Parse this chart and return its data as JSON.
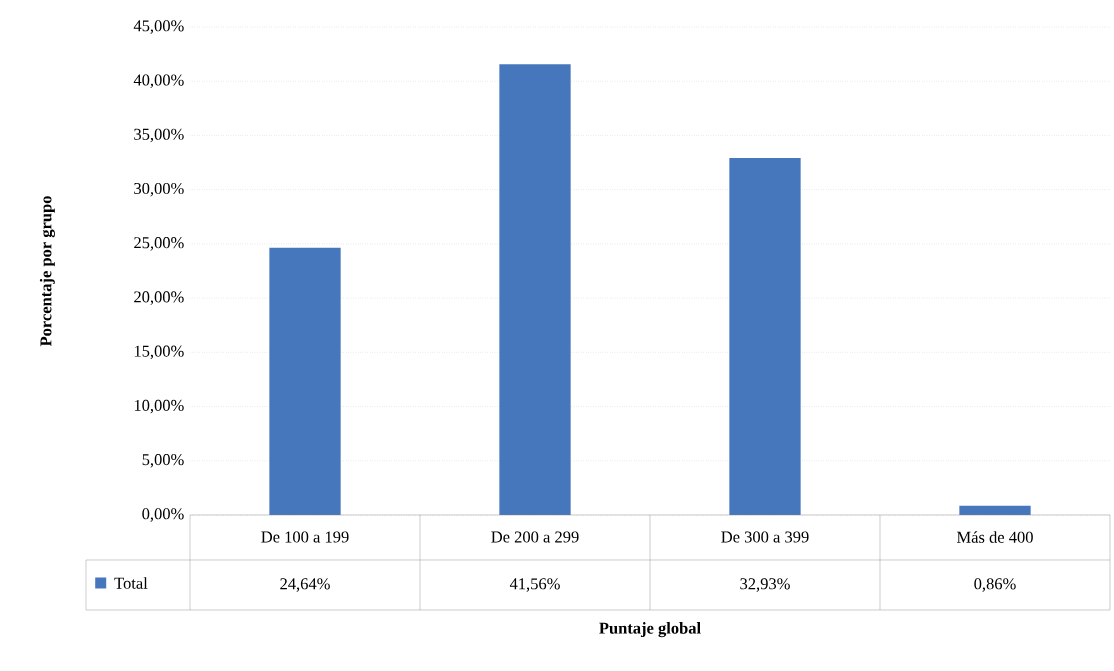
{
  "chart_data": {
    "type": "bar",
    "xlabel": "Puntaje global",
    "ylabel": "Porcentaje por grupo",
    "categories": [
      "De 100 a 199",
      "De 200 a 299",
      "De 300 a 399",
      "Más de 400"
    ],
    "series": [
      {
        "name": "Total",
        "color": "#4677bd",
        "values": [
          24.64,
          41.56,
          32.93,
          0.86
        ],
        "value_labels": [
          "24,64%",
          "41,56%",
          "32,93%",
          "0,86%"
        ]
      }
    ],
    "ylim": [
      0,
      45
    ],
    "yticks": [
      {
        "value": 0,
        "label": "0,00%"
      },
      {
        "value": 5,
        "label": "5,00%"
      },
      {
        "value": 10,
        "label": "10,00%"
      },
      {
        "value": 15,
        "label": "15,00%"
      },
      {
        "value": 20,
        "label": "20,00%"
      },
      {
        "value": 25,
        "label": "25,00%"
      },
      {
        "value": 30,
        "label": "30,00%"
      },
      {
        "value": 35,
        "label": "35,00%"
      },
      {
        "value": 40,
        "label": "40,00%"
      },
      {
        "value": 45,
        "label": "45,00%"
      }
    ],
    "grid": "y",
    "legend": "bottom left"
  }
}
